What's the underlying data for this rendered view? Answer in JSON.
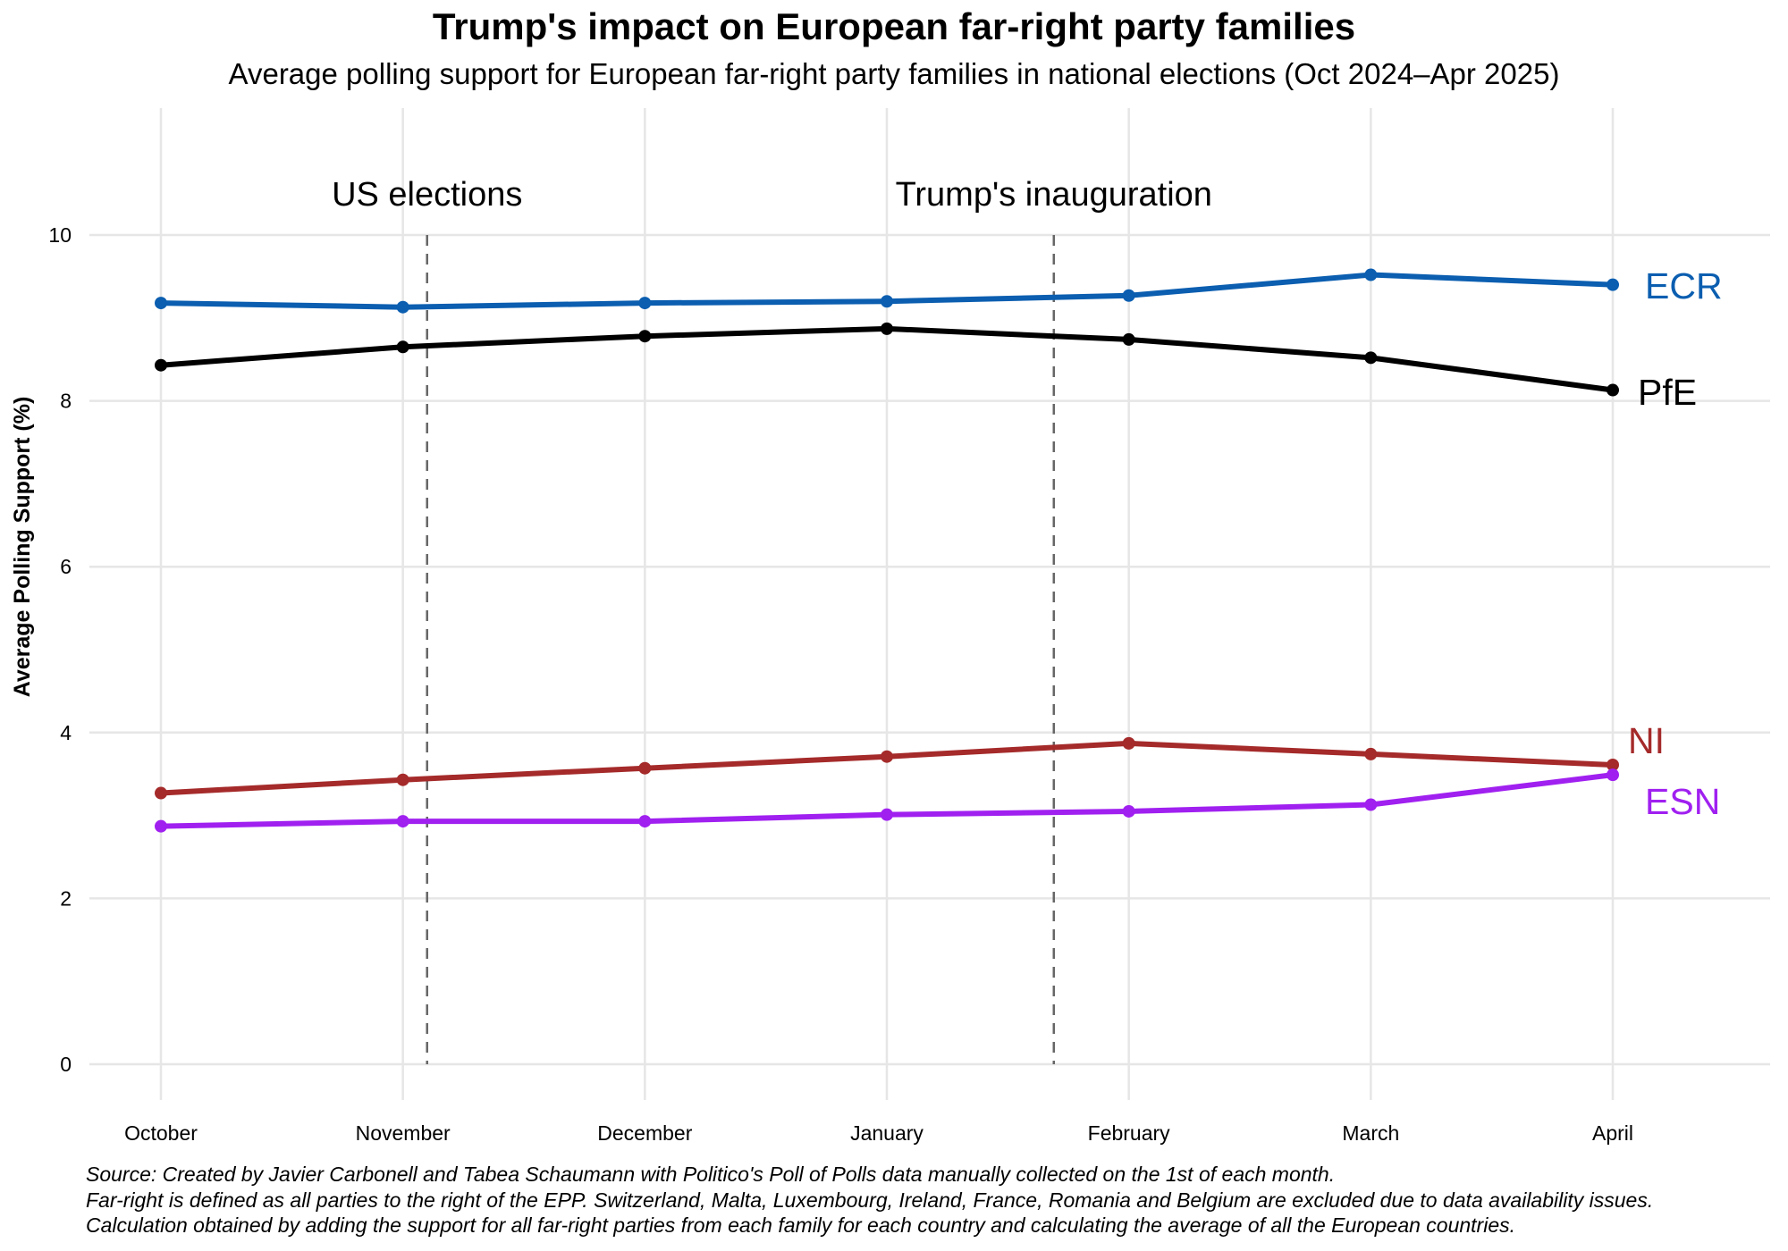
{
  "chart_data": {
    "type": "line",
    "title": "Trump's impact on European far-right party families",
    "subtitle": "Average polling support for European far-right party families in national elections (Oct 2024–Apr 2025)",
    "xlabel": "",
    "ylabel": "Average Polling Support (%)",
    "categories": [
      "October",
      "November",
      "December",
      "January",
      "February",
      "March",
      "April"
    ],
    "ylim": [
      0,
      10
    ],
    "yticks": [
      0,
      2,
      4,
      6,
      8,
      10
    ],
    "grid": true,
    "legend": "direct-labels-right",
    "series": [
      {
        "name": "ECR",
        "color": "#0B5EB0",
        "values": [
          9.18,
          9.13,
          9.18,
          9.2,
          9.27,
          9.52,
          9.4
        ]
      },
      {
        "name": "PfE",
        "color": "#000000",
        "values": [
          8.43,
          8.65,
          8.78,
          8.87,
          8.74,
          8.52,
          8.13
        ]
      },
      {
        "name": "NI",
        "color": "#A52A2A",
        "values": [
          3.27,
          3.43,
          3.57,
          3.71,
          3.87,
          3.74,
          3.61
        ]
      },
      {
        "name": "ESN",
        "color": "#A020F0",
        "values": [
          2.87,
          2.93,
          2.93,
          3.01,
          3.05,
          3.13,
          3.49
        ]
      }
    ],
    "annotations": [
      {
        "label": "US elections",
        "x_position_months_from_october": 1.1
      },
      {
        "label": "Trump's inauguration",
        "x_position_months_from_october": 3.69
      }
    ],
    "footer": [
      "Source: Created by Javier Carbonell and Tabea Schaumann with Politico's Poll of Polls data manually collected on the 1st of each month.",
      "Far-right is defined as all parties to the right of the EPP. Switzerland, Malta, Luxembourg, Ireland, France, Romania and Belgium are excluded due to data availability issues.",
      "Calculation obtained by adding the support for all far-right parties from each family for each country and calculating the average of all the European countries."
    ]
  }
}
